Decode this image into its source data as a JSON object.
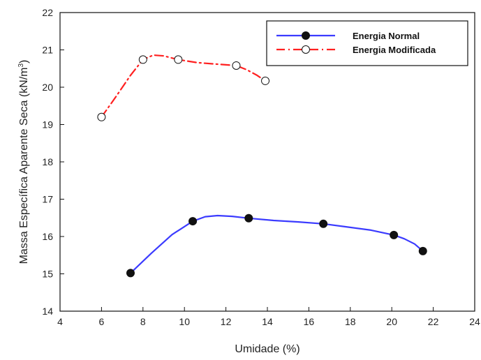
{
  "chart_data": {
    "type": "line",
    "xlabel": "Umidade (%)",
    "ylabel_main": "Massa Específica Aparente Seca (kN/m",
    "ylabel_sup": "3",
    "ylabel_close": ")",
    "xlim": [
      4,
      24
    ],
    "ylim": [
      14,
      22
    ],
    "xticks": [
      "4",
      "6",
      "8",
      "10",
      "12",
      "14",
      "16",
      "18",
      "20",
      "22",
      "24"
    ],
    "yticks": [
      "14",
      "15",
      "16",
      "17",
      "18",
      "19",
      "20",
      "21",
      "22"
    ],
    "grid": false,
    "legend_position": "top-right",
    "series": [
      {
        "name": "Energia Normal",
        "color": "#3b3bff",
        "line_style": "solid",
        "marker": "filled-circle",
        "x": [
          7.4,
          10.4,
          13.1,
          16.7,
          20.1,
          21.5
        ],
        "y": [
          15.02,
          16.41,
          16.49,
          16.34,
          16.04,
          15.61
        ],
        "curve_x": [
          7.4,
          8.4,
          9.4,
          10.4,
          11.0,
          11.6,
          12.3,
          13.1,
          14.3,
          15.5,
          16.7,
          17.8,
          19.0,
          20.1,
          20.6,
          21.1,
          21.5
        ],
        "curve_y": [
          15.02,
          15.55,
          16.05,
          16.41,
          16.53,
          16.56,
          16.54,
          16.49,
          16.43,
          16.39,
          16.34,
          16.26,
          16.17,
          16.04,
          15.94,
          15.8,
          15.61
        ]
      },
      {
        "name": "Energia Modificada",
        "color": "#ff2020",
        "line_style": "dash-dot",
        "marker": "open-circle",
        "x": [
          6.0,
          8.0,
          9.7,
          12.5,
          13.9
        ],
        "y": [
          19.2,
          20.74,
          20.74,
          20.58,
          20.17
        ],
        "curve_x": [
          6.0,
          6.7,
          7.4,
          8.0,
          8.5,
          9.0,
          9.7,
          10.6,
          11.5,
          12.5,
          13.0,
          13.5,
          13.9
        ],
        "curve_y": [
          19.2,
          19.75,
          20.32,
          20.74,
          20.86,
          20.84,
          20.74,
          20.66,
          20.62,
          20.58,
          20.47,
          20.32,
          20.17
        ]
      }
    ]
  }
}
